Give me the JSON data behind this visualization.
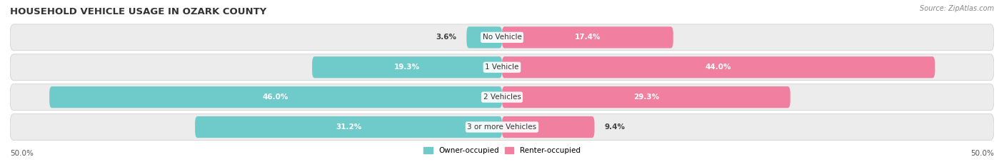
{
  "title": "HOUSEHOLD VEHICLE USAGE IN OZARK COUNTY",
  "source": "Source: ZipAtlas.com",
  "categories": [
    "No Vehicle",
    "1 Vehicle",
    "2 Vehicles",
    "3 or more Vehicles"
  ],
  "owner_values": [
    3.6,
    19.3,
    46.0,
    31.2
  ],
  "renter_values": [
    17.4,
    44.0,
    29.3,
    9.4
  ],
  "owner_color": "#6ecbca",
  "renter_color": "#f07fa0",
  "bar_bg_color": "#ececec",
  "bar_border_color": "#d8d8d8",
  "background_color": "#ffffff",
  "axis_min": -50.0,
  "axis_max": 50.0,
  "bar_height": 0.72,
  "figsize": [
    14.06,
    2.34
  ],
  "dpi": 100,
  "title_fontsize": 9.5,
  "label_fontsize": 7.5,
  "cat_fontsize": 7.5,
  "source_fontsize": 7.0
}
